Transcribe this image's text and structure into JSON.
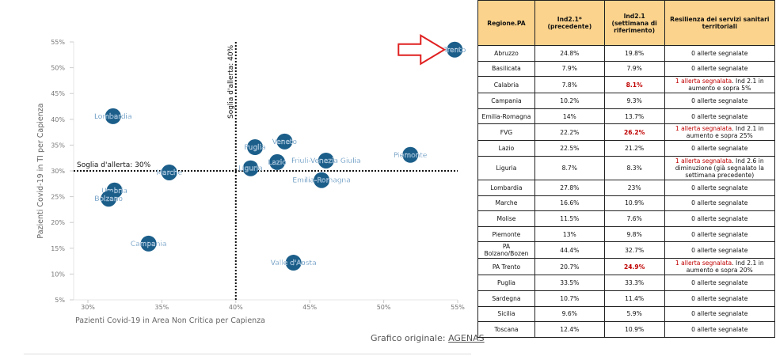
{
  "chart_data": {
    "type": "scatter",
    "xlabel": "Pazienti Covid-19 in Area Non Critica per Capienza",
    "ylabel": "Pazienti Covid-19 in TI per Capienza",
    "xlim": [
      29,
      55
    ],
    "ylim": [
      5,
      55
    ],
    "xticks": [
      "30%",
      "35%",
      "40%",
      "45%",
      "50%",
      "55%"
    ],
    "xtick_values": [
      30,
      35,
      40,
      45,
      50,
      55
    ],
    "yticks": [
      "55%",
      "50%",
      "45%",
      "40%",
      "35%",
      "30%",
      "25%",
      "20%",
      "15%",
      "10%",
      "5%"
    ],
    "ytick_values": [
      55,
      50,
      45,
      40,
      35,
      30,
      25,
      20,
      15,
      10,
      5
    ],
    "thresholds": {
      "x": 40,
      "y": 30,
      "x_label": "Soglia d'allerta: 40%",
      "y_label": "Soglia d'allerta: 30%"
    },
    "points": [
      {
        "label": "Trento",
        "x": 54.8,
        "y": 53.5
      },
      {
        "label": "Lombardia",
        "x": 31.7,
        "y": 40.6
      },
      {
        "label": "Veneto",
        "x": 43.3,
        "y": 35.7
      },
      {
        "label": "Puglia",
        "x": 41.3,
        "y": 34.6
      },
      {
        "label": "Piemonte",
        "x": 51.8,
        "y": 33.1
      },
      {
        "label": "Friuli-Venezia Giulia",
        "x": 46.1,
        "y": 32.0
      },
      {
        "label": "Lazio",
        "x": 42.8,
        "y": 31.7
      },
      {
        "label": "Liguria",
        "x": 41.0,
        "y": 30.5
      },
      {
        "label": "Marche",
        "x": 35.5,
        "y": 29.7
      },
      {
        "label": "Emilia-Romagna",
        "x": 45.8,
        "y": 28.2
      },
      {
        "label": "Umbria",
        "x": 31.8,
        "y": 26.2
      },
      {
        "label": "Bolzano",
        "x": 31.4,
        "y": 24.6
      },
      {
        "label": "Campania",
        "x": 34.1,
        "y": 15.9
      },
      {
        "label": "Valle d'Aosta",
        "x": 43.9,
        "y": 12.2
      }
    ],
    "highlight": "Trento",
    "point_color": "#1b5e8a",
    "label_color": "#2a6fa8",
    "arrow_color": "#e02020"
  },
  "footer": {
    "text": "Grafico originale: ",
    "link": "AGENAS"
  },
  "table": {
    "headers": [
      "Regione.PA",
      "Ind2.1*\n(precedente)",
      "Ind2.1\n(settimana di riferimento)",
      "Resilienza dei servizi sanitari territoriali"
    ],
    "rows": [
      {
        "region": "Abruzzo",
        "prev": "24.8%",
        "curr": "19.8%",
        "alert": false,
        "res": "0 allerte segnalate"
      },
      {
        "region": "Basilicata",
        "prev": "7.9%",
        "curr": "7.9%",
        "alert": false,
        "res": "0 allerte segnalate"
      },
      {
        "region": "Calabria",
        "prev": "7.8%",
        "curr": "8.1%",
        "alert": true,
        "res_red": "1 allerta segnalata",
        "res": ". Ind 2.1 in aumento e sopra 5%"
      },
      {
        "region": "Campania",
        "prev": "10.2%",
        "curr": "9.3%",
        "alert": false,
        "res": "0 allerte segnalate"
      },
      {
        "region": "Emilia-Romagna",
        "prev": "14%",
        "curr": "13.7%",
        "alert": false,
        "res": "0 allerte segnalate"
      },
      {
        "region": "FVG",
        "prev": "22.2%",
        "curr": "26.2%",
        "alert": true,
        "res_red": "1 allerta segnalata",
        "res": ". Ind 2.1 in aumento e sopra 25%"
      },
      {
        "region": "Lazio",
        "prev": "22.5%",
        "curr": "21.2%",
        "alert": false,
        "res": "0 allerte segnalate"
      },
      {
        "region": "Liguria",
        "prev": "8.7%",
        "curr": "8.3%",
        "alert": false,
        "res_red": "1 allerta segnalata",
        "res": ". Ind 2.6 in diminuzione (già segnalato la settimana precedente)"
      },
      {
        "region": "Lombardia",
        "prev": "27.8%",
        "curr": "23%",
        "alert": false,
        "res": "0 allerte segnalate"
      },
      {
        "region": "Marche",
        "prev": "16.6%",
        "curr": "10.9%",
        "alert": false,
        "res": "0 allerte segnalate"
      },
      {
        "region": "Molise",
        "prev": "11.5%",
        "curr": "7.6%",
        "alert": false,
        "res": "0 allerte segnalate"
      },
      {
        "region": "Piemonte",
        "prev": "13%",
        "curr": "9.8%",
        "alert": false,
        "res": "0 allerte segnalate"
      },
      {
        "region": "PA Bolzano/Bozen",
        "prev": "44.4%",
        "curr": "32.7%",
        "alert": false,
        "res": "0 allerte segnalate"
      },
      {
        "region": "PA Trento",
        "prev": "20.7%",
        "curr": "24.9%",
        "alert": true,
        "res_red": "1 allerta segnalata",
        "res": ". Ind 2.1 in aumento e sopra 20%"
      },
      {
        "region": "Puglia",
        "prev": "33.5%",
        "curr": "33.3%",
        "alert": false,
        "res": "0 allerte segnalate"
      },
      {
        "region": "Sardegna",
        "prev": "10.7%",
        "curr": "11.4%",
        "alert": false,
        "res": "0 allerte segnalate"
      },
      {
        "region": "Sicilia",
        "prev": "9.6%",
        "curr": "5.9%",
        "alert": false,
        "res": "0 allerte segnalate"
      },
      {
        "region": "Toscana",
        "prev": "12.4%",
        "curr": "10.9%",
        "alert": false,
        "res": "0 allerte segnalate"
      }
    ]
  }
}
